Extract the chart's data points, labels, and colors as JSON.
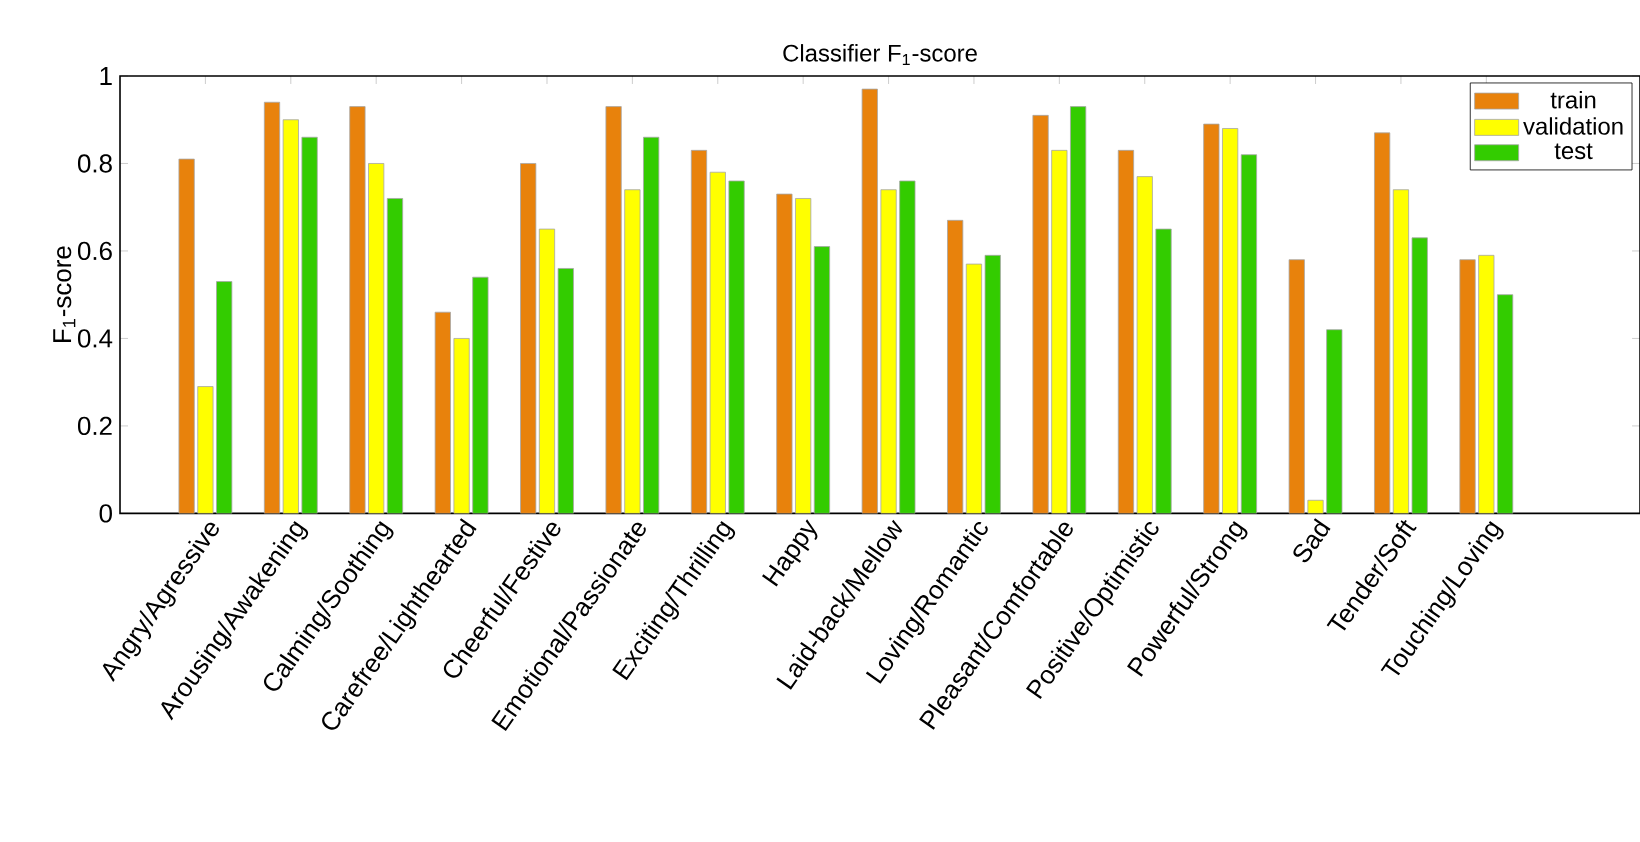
{
  "chart_data": {
    "type": "bar",
    "title": "Classifier F$_{1}$-score",
    "ylabel": "F$_{1}$-score",
    "categories": [
      "Angry/Agressive",
      "Arousing/Awakening",
      "Calming/Soothing",
      "Carefree/Lighthearted",
      "Cheerful/Festive",
      "Emotional/Passionate",
      "Exciting/Thrilling",
      "Happy",
      "Laid-back/Mellow",
      "Loving/Romantic",
      "Pleasant/Comfortable",
      "Positive/Optimistic",
      "Powerful/Strong",
      "Sad",
      "Tender/Soft",
      "Touching/Loving"
    ],
    "series": [
      {
        "name": "train",
        "color": "#e8820c",
        "values": [
          0.81,
          0.94,
          0.93,
          0.46,
          0.8,
          0.93,
          0.83,
          0.73,
          0.97,
          0.67,
          0.91,
          0.83,
          0.89,
          0.58,
          0.87,
          0.58
        ]
      },
      {
        "name": "validation",
        "color": "#ffff00",
        "values": [
          0.29,
          0.9,
          0.8,
          0.4,
          0.65,
          0.74,
          0.78,
          0.72,
          0.74,
          0.57,
          0.83,
          0.77,
          0.88,
          0.03,
          0.74,
          0.59
        ]
      },
      {
        "name": "test",
        "color": "#33cc00",
        "values": [
          0.53,
          0.86,
          0.72,
          0.54,
          0.56,
          0.86,
          0.76,
          0.61,
          0.76,
          0.59,
          0.93,
          0.65,
          0.82,
          0.42,
          0.63,
          0.5
        ]
      }
    ],
    "ylim": [
      0,
      1
    ],
    "yticks": [
      0,
      0.2,
      0.4,
      0.6,
      0.8,
      1
    ],
    "grid": false,
    "legend": "top right"
  }
}
